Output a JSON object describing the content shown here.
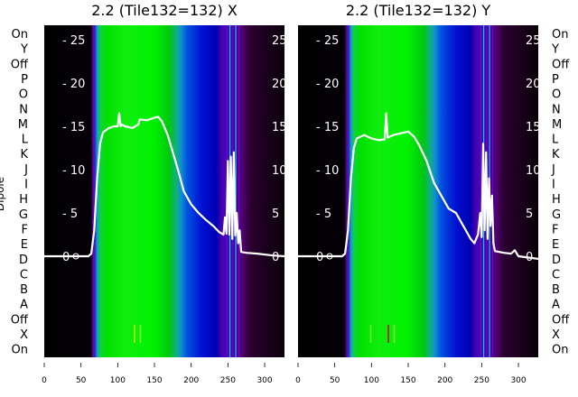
{
  "chart_data": {
    "type": "line",
    "description_labels": {
      "ylabel": "Dipole"
    },
    "row_labels": [
      "On",
      "Y",
      "Off",
      "P",
      "O",
      "N",
      "M",
      "L",
      "K",
      "J",
      "I",
      "H",
      "G",
      "F",
      "E",
      "D",
      "C",
      "B",
      "A",
      "Off",
      "X",
      "On"
    ],
    "xlim": [
      0,
      327
    ],
    "ylim": [
      -11.5,
      26.5
    ],
    "xticks": [
      0,
      50,
      100,
      150,
      200,
      250,
      300
    ],
    "yticks": [
      0,
      5,
      10,
      15,
      20,
      25
    ],
    "background_colormap": [
      {
        "x": 0,
        "color": "#000000"
      },
      {
        "x": 64,
        "color": "#050008"
      },
      {
        "x": 66,
        "color": "#6a00a0"
      },
      {
        "x": 69,
        "color": "#3020d0"
      },
      {
        "x": 72,
        "color": "#10a0d0"
      },
      {
        "x": 76,
        "color": "#10d040"
      },
      {
        "x": 85,
        "color": "#00e000"
      },
      {
        "x": 110,
        "color": "#10ee10"
      },
      {
        "x": 150,
        "color": "#00f000"
      },
      {
        "x": 170,
        "color": "#00c810"
      },
      {
        "x": 180,
        "color": "#10b080"
      },
      {
        "x": 186,
        "color": "#1090d0"
      },
      {
        "x": 195,
        "color": "#0050e0"
      },
      {
        "x": 215,
        "color": "#0010d0"
      },
      {
        "x": 235,
        "color": "#0000b0"
      },
      {
        "x": 242,
        "color": "#5000b0"
      },
      {
        "x": 250,
        "color": "#3010c0"
      },
      {
        "x": 262,
        "color": "#4000a0"
      },
      {
        "x": 270,
        "color": "#500070"
      },
      {
        "x": 280,
        "color": "#2a0030"
      },
      {
        "x": 327,
        "color": "#0a0008"
      }
    ],
    "panels": [
      {
        "title": "2.2 (Tile132=132) X",
        "series": {
          "name": "X",
          "x": [
            0,
            60,
            64,
            68,
            72,
            76,
            80,
            88,
            95,
            100,
            102,
            104,
            106,
            110,
            120,
            128,
            130,
            140,
            150,
            155,
            160,
            168,
            175,
            182,
            190,
            200,
            210,
            220,
            230,
            238,
            244,
            246,
            248,
            250,
            252,
            254,
            256,
            258,
            260,
            262,
            264,
            266,
            268,
            275,
            290,
            310,
            327
          ],
          "y": [
            0,
            0,
            0.3,
            3,
            9,
            13,
            14.3,
            14.8,
            15,
            15,
            16.5,
            15,
            15.2,
            15,
            14.8,
            15.2,
            15.8,
            15.7,
            16,
            16.1,
            15.6,
            14,
            12,
            10,
            7.5,
            6,
            5,
            4.2,
            3.5,
            2.8,
            2.5,
            4.5,
            2.6,
            11,
            2.5,
            11.5,
            2,
            12,
            2.4,
            5,
            1.5,
            3,
            0.5,
            0.4,
            0.3,
            0.1,
            0
          ]
        },
        "bright_marks": [
          {
            "x": 122,
            "color": "#d0e000"
          },
          {
            "x": 130,
            "color": "#80ff20"
          }
        ]
      },
      {
        "title": "2.2 (Tile132=132) Y",
        "series": {
          "name": "Y",
          "x": [
            0,
            60,
            64,
            68,
            72,
            76,
            80,
            90,
            100,
            110,
            118,
            120,
            122,
            130,
            140,
            150,
            158,
            165,
            175,
            185,
            195,
            205,
            215,
            225,
            235,
            240,
            245,
            248,
            250,
            252,
            254,
            256,
            258,
            260,
            262,
            264,
            266,
            268,
            280,
            290,
            295,
            300,
            327
          ],
          "y": [
            0,
            0,
            0.3,
            3,
            9,
            12.5,
            13.6,
            14,
            13.6,
            13.4,
            13.5,
            16.5,
            13.7,
            14,
            14.2,
            14.4,
            13.8,
            12.8,
            11,
            8.5,
            7,
            5.5,
            5,
            3.5,
            2,
            1.5,
            2.5,
            5,
            2.2,
            13,
            3,
            12,
            2,
            9,
            3.5,
            7,
            1.5,
            0.6,
            0.4,
            0.3,
            0.7,
            0,
            -0.3
          ]
        },
        "bright_marks": [
          {
            "x": 122,
            "color": "#d00000"
          },
          {
            "x": 98,
            "color": "#60ff20"
          },
          {
            "x": 130,
            "color": "#80ff20"
          }
        ]
      }
    ]
  }
}
